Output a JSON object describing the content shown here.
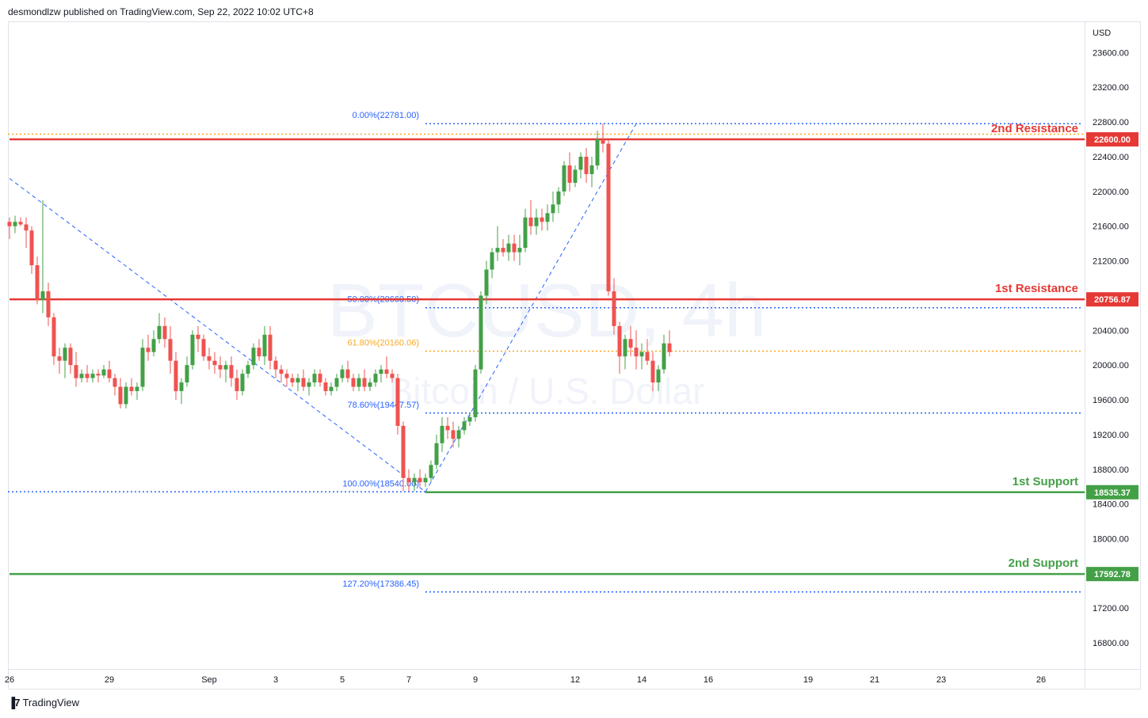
{
  "header": {
    "publisher": "desmondlzw published on TradingView.com, Sep 22, 2022 10:02 UTC+8"
  },
  "footer": {
    "brand": "TradingView",
    "logo_icon": "tradingview-logo-icon"
  },
  "chart_data": {
    "type": "candlestick",
    "watermark": {
      "symbol": "BTCUSD, 4h",
      "description": "Bitcoin / U.S. Dollar"
    },
    "currency": "USD",
    "ylim": [
      16500,
      23950
    ],
    "y_ticks": [
      16800,
      17200,
      17600,
      18000,
      18400,
      18800,
      19200,
      19600,
      20000,
      20400,
      20800,
      21200,
      21600,
      22000,
      22400,
      22800,
      23200,
      23600
    ],
    "x_ticks": [
      {
        "label": "26",
        "bar": 0
      },
      {
        "label": "29",
        "bar": 18
      },
      {
        "label": "Sep",
        "bar": 36
      },
      {
        "label": "3",
        "bar": 48
      },
      {
        "label": "5",
        "bar": 60
      },
      {
        "label": "7",
        "bar": 72
      },
      {
        "label": "9",
        "bar": 84
      },
      {
        "label": "12",
        "bar": 102
      },
      {
        "label": "14",
        "bar": 114
      },
      {
        "label": "16",
        "bar": 126
      },
      {
        "label": "19",
        "bar": 144
      },
      {
        "label": "21",
        "bar": 156
      },
      {
        "label": "23",
        "bar": 168
      },
      {
        "label": "26",
        "bar": 186
      }
    ],
    "levels": [
      {
        "name": "2nd Resistance",
        "value": 22600.0,
        "label": "22600.00",
        "color": "#e53935",
        "start_bar": 0
      },
      {
        "name": "1st Resistance",
        "value": 20756.87,
        "label": "20756.87",
        "color": "#e53935",
        "start_bar": 0
      },
      {
        "name": "1st Support",
        "value": 18535.37,
        "label": "18535.37",
        "color": "#43a047",
        "start_bar": 75
      },
      {
        "name": "2nd Support",
        "value": 17592.78,
        "label": "17592.78",
        "color": "#43a047",
        "start_bar": 0
      }
    ],
    "fib_levels": [
      {
        "label": "0.00%(22781.00)",
        "value": 22781.0,
        "color": "#2962ff"
      },
      {
        "label": "50.00%(20660.50)",
        "value": 20660.5,
        "color": "#2962ff"
      },
      {
        "label": "61.80%(20160.06)",
        "value": 20160.06,
        "color": "#f9a825"
      },
      {
        "label": "78.60%(19447.57)",
        "value": 19447.57,
        "color": "#2962ff"
      },
      {
        "label": "100.00%(18540.00)",
        "value": 18540.0,
        "color": "#2962ff"
      },
      {
        "label": "127.20%(17386.45)",
        "value": 17386.45,
        "color": "#2962ff"
      }
    ],
    "extra_line": {
      "value": 22660,
      "color": "#f9a825"
    },
    "trendlines": [
      {
        "from": {
          "bar": 0,
          "value": 22150
        },
        "to": {
          "bar": 75,
          "value": 18540
        }
      },
      {
        "from": {
          "bar": 75,
          "value": 18540
        },
        "to": {
          "bar": 113,
          "value": 22781
        }
      }
    ],
    "up_color": "#43a047",
    "down_color": "#ef5350",
    "candles": [
      [
        21650,
        21700,
        21450,
        21600
      ],
      [
        21600,
        21720,
        21520,
        21650
      ],
      [
        21650,
        21700,
        21600,
        21620
      ],
      [
        21620,
        21700,
        21350,
        21550
      ],
      [
        21550,
        21600,
        21050,
        21150
      ],
      [
        21150,
        21250,
        20700,
        20750
      ],
      [
        20750,
        21900,
        20600,
        20850
      ],
      [
        20850,
        20950,
        20450,
        20550
      ],
      [
        20550,
        20600,
        20000,
        20100
      ],
      [
        20100,
        20200,
        19900,
        20050
      ],
      [
        20050,
        20250,
        19850,
        20200
      ],
      [
        20200,
        20250,
        19900,
        20000
      ],
      [
        20000,
        20150,
        19750,
        19850
      ],
      [
        19850,
        19950,
        19800,
        19900
      ],
      [
        19900,
        20000,
        19800,
        19850
      ],
      [
        19850,
        19950,
        19800,
        19900
      ],
      [
        19900,
        19950,
        19800,
        19880
      ],
      [
        19880,
        20000,
        19850,
        19950
      ],
      [
        19950,
        20050,
        19800,
        19850
      ],
      [
        19850,
        19900,
        19650,
        19750
      ],
      [
        19750,
        19850,
        19500,
        19550
      ],
      [
        19550,
        19800,
        19500,
        19750
      ],
      [
        19750,
        19850,
        19650,
        19700
      ],
      [
        19700,
        19800,
        19600,
        19750
      ],
      [
        19750,
        20300,
        19700,
        20200
      ],
      [
        20200,
        20350,
        20050,
        20150
      ],
      [
        20150,
        20400,
        20100,
        20300
      ],
      [
        20300,
        20600,
        20250,
        20450
      ],
      [
        20450,
        20550,
        20200,
        20300
      ],
      [
        20300,
        20450,
        19900,
        20050
      ],
      [
        20050,
        20150,
        19600,
        19700
      ],
      [
        19700,
        19850,
        19550,
        19800
      ],
      [
        19800,
        20100,
        19750,
        20000
      ],
      [
        20000,
        20400,
        19950,
        20350
      ],
      [
        20350,
        20450,
        20150,
        20300
      ],
      [
        20300,
        20350,
        20050,
        20100
      ],
      [
        20100,
        20200,
        19950,
        20050
      ],
      [
        20050,
        20150,
        19900,
        20000
      ],
      [
        20000,
        20100,
        19850,
        19950
      ],
      [
        19950,
        20050,
        19800,
        20000
      ],
      [
        20000,
        20100,
        19750,
        19850
      ],
      [
        19850,
        19950,
        19600,
        19700
      ],
      [
        19700,
        19950,
        19650,
        19900
      ],
      [
        19900,
        20050,
        19850,
        20000
      ],
      [
        20000,
        20250,
        19950,
        20200
      ],
      [
        20200,
        20300,
        20050,
        20100
      ],
      [
        20100,
        20450,
        20000,
        20350
      ],
      [
        20350,
        20450,
        19950,
        20050
      ],
      [
        20050,
        20100,
        19850,
        19950
      ],
      [
        19950,
        20000,
        19800,
        19900
      ],
      [
        19900,
        19950,
        19750,
        19850
      ],
      [
        19850,
        19900,
        19750,
        19800
      ],
      [
        19800,
        19900,
        19700,
        19850
      ],
      [
        19850,
        19950,
        19700,
        19750
      ],
      [
        19750,
        19850,
        19650,
        19800
      ],
      [
        19800,
        19950,
        19750,
        19900
      ],
      [
        19900,
        19950,
        19750,
        19800
      ],
      [
        19800,
        19850,
        19650,
        19700
      ],
      [
        19700,
        19800,
        19650,
        19750
      ],
      [
        19750,
        19900,
        19700,
        19850
      ],
      [
        19850,
        20000,
        19800,
        19950
      ],
      [
        19950,
        20050,
        19800,
        19850
      ],
      [
        19850,
        19900,
        19700,
        19750
      ],
      [
        19750,
        19900,
        19700,
        19850
      ],
      [
        19850,
        19950,
        19700,
        19750
      ],
      [
        19750,
        19850,
        19700,
        19800
      ],
      [
        19800,
        19950,
        19750,
        19900
      ],
      [
        19900,
        20000,
        19800,
        19950
      ],
      [
        19950,
        20100,
        19850,
        19900
      ],
      [
        19900,
        19950,
        19800,
        19850
      ],
      [
        19850,
        19900,
        19200,
        19300
      ],
      [
        19300,
        19350,
        18550,
        18700
      ],
      [
        18700,
        18800,
        18550,
        18650
      ],
      [
        18650,
        18750,
        18550,
        18700
      ],
      [
        18700,
        18800,
        18600,
        18650
      ],
      [
        18650,
        18750,
        18600,
        18700
      ],
      [
        18700,
        18900,
        18650,
        18850
      ],
      [
        18850,
        19200,
        18800,
        19100
      ],
      [
        19100,
        19400,
        19000,
        19300
      ],
      [
        19300,
        19400,
        19150,
        19250
      ],
      [
        19250,
        19350,
        19050,
        19150
      ],
      [
        19150,
        19300,
        19050,
        19250
      ],
      [
        19250,
        19400,
        19200,
        19350
      ],
      [
        19350,
        19450,
        19300,
        19400
      ],
      [
        19400,
        20000,
        19350,
        19950
      ],
      [
        19950,
        20850,
        19900,
        20800
      ],
      [
        20800,
        21200,
        20700,
        21100
      ],
      [
        21100,
        21350,
        21000,
        21300
      ],
      [
        21300,
        21600,
        21200,
        21350
      ],
      [
        21350,
        21450,
        21250,
        21300
      ],
      [
        21300,
        21500,
        21200,
        21400
      ],
      [
        21400,
        21500,
        21200,
        21300
      ],
      [
        21300,
        21500,
        21150,
        21350
      ],
      [
        21350,
        21800,
        21300,
        21700
      ],
      [
        21700,
        21900,
        21500,
        21600
      ],
      [
        21600,
        21800,
        21500,
        21700
      ],
      [
        21700,
        21800,
        21550,
        21650
      ],
      [
        21650,
        21850,
        21550,
        21750
      ],
      [
        21750,
        22000,
        21650,
        21850
      ],
      [
        21850,
        22050,
        21750,
        22000
      ],
      [
        22000,
        22350,
        21950,
        22300
      ],
      [
        22300,
        22450,
        22000,
        22100
      ],
      [
        22100,
        22300,
        22050,
        22250
      ],
      [
        22250,
        22450,
        22150,
        22400
      ],
      [
        22400,
        22500,
        22100,
        22200
      ],
      [
        22200,
        22400,
        22050,
        22300
      ],
      [
        22300,
        22700,
        22250,
        22600
      ],
      [
        22600,
        22781,
        22450,
        22550
      ],
      [
        22550,
        22600,
        20800,
        20850
      ],
      [
        20850,
        21000,
        20350,
        20450
      ],
      [
        20450,
        20500,
        19900,
        20100
      ],
      [
        20100,
        20350,
        19950,
        20300
      ],
      [
        20300,
        20450,
        20100,
        20200
      ],
      [
        20200,
        20400,
        19950,
        20100
      ],
      [
        20100,
        20250,
        19950,
        20150
      ],
      [
        20150,
        20300,
        20000,
        20050
      ],
      [
        20050,
        20150,
        19700,
        19800
      ],
      [
        19800,
        20000,
        19700,
        19950
      ],
      [
        19950,
        20350,
        19900,
        20250
      ],
      [
        20250,
        20400,
        20100,
        20150
      ]
    ]
  }
}
